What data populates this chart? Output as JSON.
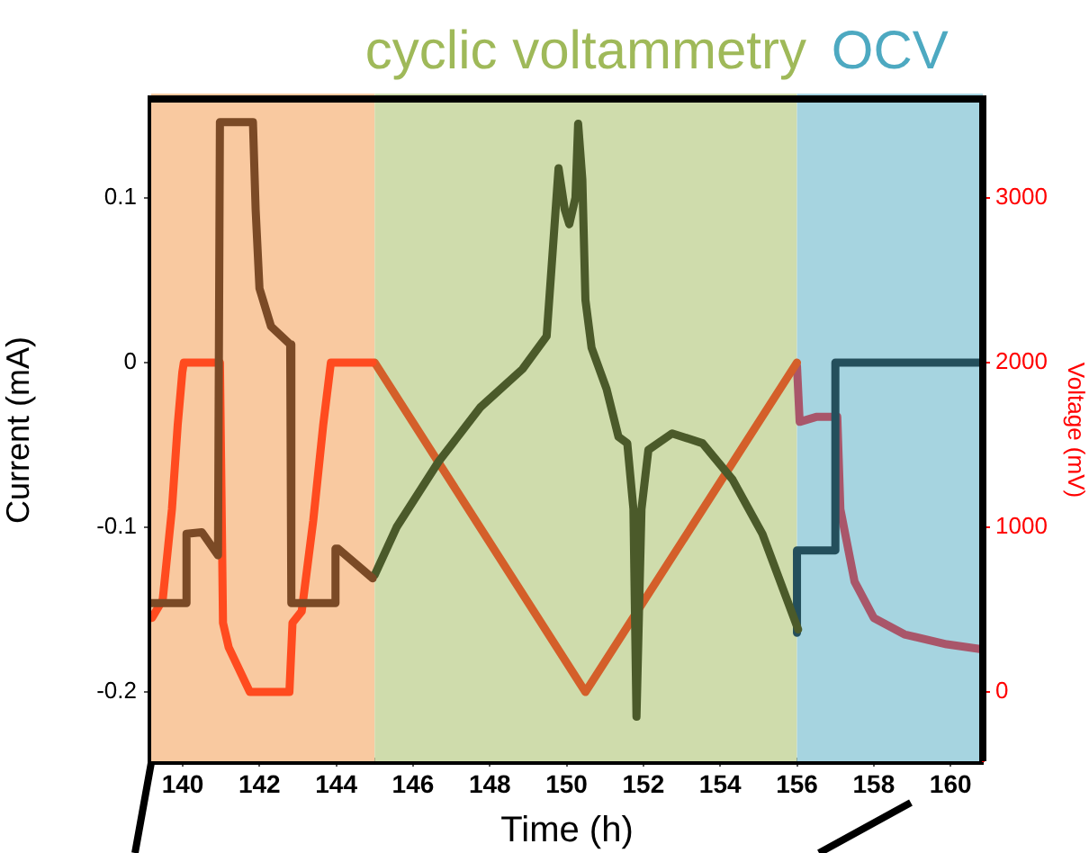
{
  "chart_data": {
    "type": "line",
    "xlabel": "Time (h)",
    "ylabel": "Current (mA)",
    "y2label": "Voltage (mV)",
    "xlim": [
      139.18,
      160.84
    ],
    "xticks": [
      140,
      142,
      144,
      146,
      148,
      150,
      152,
      154,
      156,
      158,
      160
    ],
    "ylim": [
      -0.242,
      0.16
    ],
    "yticks": [
      -0.2,
      -0.1,
      0,
      0.1
    ],
    "y2lim": [
      -420,
      3600
    ],
    "y2ticks": [
      0,
      1000,
      2000,
      3000
    ],
    "grid": false,
    "legend": false,
    "marker": "none",
    "line_style": "solid",
    "bands": [
      {
        "axis": "x",
        "from": 139.18,
        "to": 145,
        "label": null,
        "color": "#f9c9a0"
      },
      {
        "axis": "x",
        "from": 145,
        "to": 156,
        "label": "cyclic voltammetry",
        "color": "#cfdcac"
      },
      {
        "axis": "x",
        "from": 156,
        "to": 160.84,
        "label": "OCV",
        "color": "#a6d4e0"
      }
    ],
    "series": [
      {
        "color": "#7b4a26",
        "x": [
          139.2,
          140.1,
          140.1,
          140.5,
          140.92,
          140.97,
          141.83,
          141.9,
          142.0,
          142.3,
          142.8,
          142.83,
          143.98,
          143.98,
          144.05,
          144.95
        ],
        "values": [
          -0.146,
          -0.146,
          -0.104,
          -0.103,
          -0.117,
          0.146,
          0.146,
          0.093,
          0.045,
          0.022,
          0.011,
          -0.146,
          -0.146,
          -0.113,
          -0.113,
          -0.131
        ]
      },
      {
        "color": "#4b5a2a",
        "x": [
          145.0,
          145.57,
          146.67,
          147.76,
          148.85,
          149.48,
          149.66,
          149.79,
          149.95,
          150.07,
          150.23,
          150.3,
          150.41,
          150.49,
          150.65,
          151.04,
          151.35,
          151.58,
          151.74,
          151.82,
          151.95,
          152.13,
          152.75,
          153.54,
          154.32,
          155.1,
          156.03
        ],
        "values": [
          -0.129,
          -0.1,
          -0.06,
          -0.027,
          -0.004,
          0.016,
          0.075,
          0.118,
          0.093,
          0.084,
          0.1,
          0.145,
          0.111,
          0.038,
          0.009,
          -0.016,
          -0.045,
          -0.049,
          -0.089,
          -0.215,
          -0.089,
          -0.053,
          -0.043,
          -0.049,
          -0.071,
          -0.104,
          -0.162
        ]
      },
      {
        "color": "#244f5c",
        "x": [
          156.0,
          156.0,
          157.0,
          157.0,
          160.8
        ],
        "values": [
          -0.164,
          -0.114,
          -0.114,
          0,
          0
        ]
      },
      {
        "color": "#ff4b1f",
        "axis": "y2",
        "x": [
          139.2,
          139.48,
          139.72,
          139.87,
          139.99,
          140.03,
          140.97,
          141.05,
          141.2,
          141.75,
          142.78,
          142.86,
          143.1,
          143.4,
          143.66,
          143.86,
          144.95
        ],
        "values": [
          450,
          560,
          1110,
          1620,
          1940,
          2000,
          2000,
          420,
          270,
          0,
          0,
          420,
          490,
          1040,
          1620,
          2000,
          2000
        ]
      },
      {
        "color": "#d45f2a",
        "axis": "y2",
        "x": [
          145.0,
          150.49,
          156.0
        ],
        "values": [
          2000,
          0,
          2000
        ]
      },
      {
        "color": "#a9566a",
        "axis": "y2",
        "x": [
          156.0,
          156.07,
          156.5,
          157.05,
          157.13,
          157.5,
          158.0,
          158.8,
          159.9,
          160.8
        ],
        "values": [
          1980,
          1640,
          1670,
          1670,
          1110,
          670,
          450,
          350,
          290,
          260
        ]
      }
    ]
  }
}
